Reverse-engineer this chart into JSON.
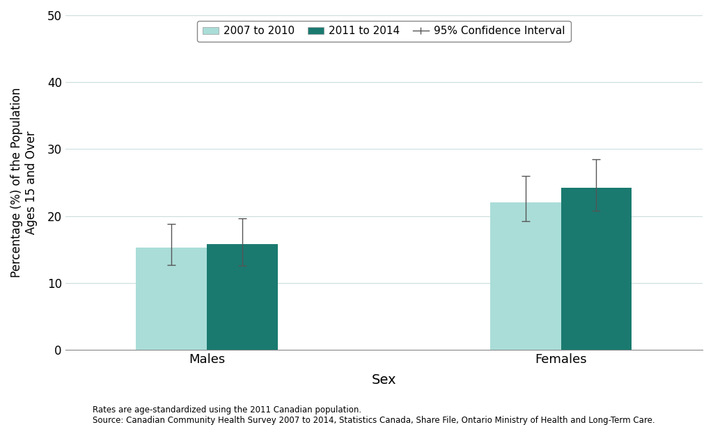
{
  "categories": [
    "Males",
    "Females"
  ],
  "series": [
    {
      "label": "2007 to 2010",
      "color": "#aaddd8",
      "values": [
        15.3,
        22.0
      ],
      "ci_lower": [
        12.7,
        19.2
      ],
      "ci_upper": [
        18.8,
        26.0
      ]
    },
    {
      "label": "2011 to 2014",
      "color": "#1a7a70",
      "values": [
        15.8,
        24.2
      ],
      "ci_lower": [
        12.6,
        20.8
      ],
      "ci_upper": [
        19.7,
        28.5
      ]
    }
  ],
  "xlabel": "Sex",
  "ylabel": "Percentage (%) of the Population\nAges 15 and Over",
  "ylim": [
    0,
    50
  ],
  "yticks": [
    0,
    10,
    20,
    30,
    40,
    50
  ],
  "ci_label": "95% Confidence Interval",
  "background_color": "#ffffff",
  "grid_color": "#ccdddd",
  "note_line1": "Rates are age-standardized using the 2011 Canadian population.",
  "note_line2": "Source: Canadian Community Health Survey 2007 to 2014, Statistics Canada, Share File, Ontario Ministry of Health and Long-Term Care.",
  "error_bar_color": "#555555",
  "error_cap_size": 4
}
